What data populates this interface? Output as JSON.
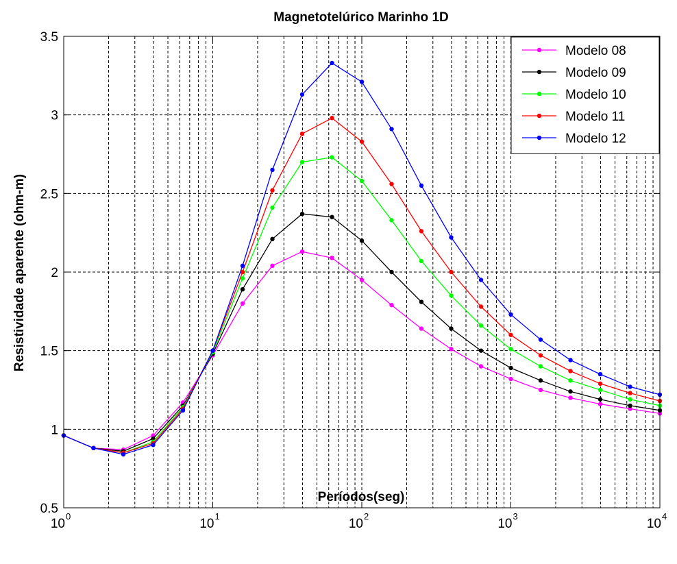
{
  "chart_data": {
    "type": "line",
    "title": "Magnetotelúrico Marinho 1D",
    "xlabel": "Períodos(seg)",
    "ylabel": "Resistividade aparente (ohm-m)",
    "xscale": "log",
    "xlim": [
      1,
      10000
    ],
    "ylim": [
      0.5,
      3.5
    ],
    "grid": true,
    "legend_position": "top-right",
    "x_ticks": [
      {
        "base": "10",
        "exp": "0"
      },
      {
        "base": "10",
        "exp": "1"
      },
      {
        "base": "10",
        "exp": "2"
      },
      {
        "base": "10",
        "exp": "3"
      },
      {
        "base": "10",
        "exp": "4"
      }
    ],
    "y_ticks": [
      "0.5",
      "1",
      "1.5",
      "2",
      "2.5",
      "3",
      "3.5"
    ],
    "y_tick_values": [
      0.5,
      1,
      1.5,
      2,
      2.5,
      3,
      3.5
    ],
    "x": [
      1,
      1.585,
      2.512,
      3.981,
      6.31,
      10,
      15.85,
      25.12,
      39.81,
      63.1,
      100,
      158.5,
      251.2,
      398.1,
      631,
      1000,
      1585,
      2512,
      3981,
      6310,
      10000
    ],
    "series": [
      {
        "name": "Modelo 08",
        "color": "#ff00ff",
        "values": [
          0.96,
          0.88,
          0.87,
          0.96,
          1.17,
          1.47,
          1.8,
          2.04,
          2.13,
          2.09,
          1.95,
          1.79,
          1.64,
          1.51,
          1.4,
          1.32,
          1.25,
          1.2,
          1.16,
          1.13,
          1.1
        ]
      },
      {
        "name": "Modelo 09",
        "color": "#000000",
        "values": [
          0.96,
          0.88,
          0.86,
          0.94,
          1.15,
          1.48,
          1.89,
          2.21,
          2.37,
          2.35,
          2.2,
          2.0,
          1.81,
          1.64,
          1.5,
          1.39,
          1.31,
          1.24,
          1.19,
          1.15,
          1.12
        ]
      },
      {
        "name": "Modelo 10",
        "color": "#00ff00",
        "values": [
          0.96,
          0.88,
          0.85,
          0.92,
          1.14,
          1.49,
          1.96,
          2.41,
          2.7,
          2.73,
          2.58,
          2.33,
          2.07,
          1.85,
          1.66,
          1.51,
          1.4,
          1.31,
          1.25,
          1.19,
          1.15
        ]
      },
      {
        "name": "Modelo 11",
        "color": "#ff0000",
        "values": [
          0.96,
          0.88,
          0.85,
          0.91,
          1.13,
          1.5,
          2.0,
          2.52,
          2.88,
          2.98,
          2.83,
          2.56,
          2.26,
          2.0,
          1.78,
          1.6,
          1.47,
          1.37,
          1.29,
          1.23,
          1.18
        ]
      },
      {
        "name": "Modelo 12",
        "color": "#0000ff",
        "values": [
          0.96,
          0.88,
          0.84,
          0.9,
          1.12,
          1.5,
          2.04,
          2.65,
          3.13,
          3.33,
          3.21,
          2.91,
          2.55,
          2.22,
          1.95,
          1.73,
          1.57,
          1.44,
          1.35,
          1.27,
          1.22
        ]
      }
    ]
  }
}
